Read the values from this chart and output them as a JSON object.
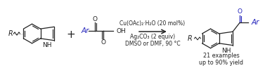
{
  "background_color": "#ffffff",
  "fig_width": 3.77,
  "fig_height": 0.97,
  "dpi": 100,
  "blue_color": "#2222bb",
  "black_color": "#222222",
  "reagent_line1": "Cu(OAc)₂·H₂O (20 mol%)",
  "reagent_line2": "Ag₂CO₃ (2 equiv)",
  "reagent_line3": "DMSO or DMF, 90 °C",
  "examples_line1": "21 examples",
  "examples_line2": "up to 90% yield",
  "font_size_reagent": 5.5,
  "font_size_examples": 5.8,
  "font_size_labels": 7.0
}
